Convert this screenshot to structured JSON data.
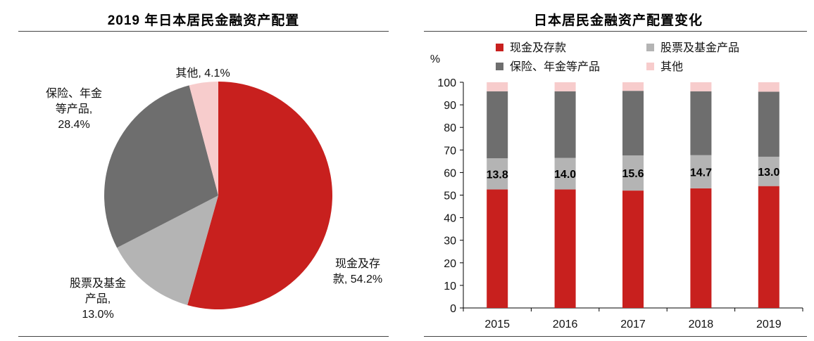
{
  "chart_data": [
    {
      "type": "pie",
      "title": "2019 年日本居民金融资产配置",
      "slices": [
        {
          "label_lines": [
            "现金及存",
            "款, 54.2%"
          ],
          "value": 54.2,
          "color": "#c8201e"
        },
        {
          "label_lines": [
            "股票及基金",
            "产品,",
            "13.0%"
          ],
          "value": 13.0,
          "color": "#b4b4b4"
        },
        {
          "label_lines": [
            "保险、年金",
            "等产品,",
            "28.4%"
          ],
          "value": 28.4,
          "color": "#6e6e6e"
        },
        {
          "label_lines": [
            "其他, 4.1%"
          ],
          "value": 4.1,
          "color": "#f7cccc"
        }
      ]
    },
    {
      "type": "bar",
      "stacked": true,
      "title": "日本居民金融资产配置变化",
      "ylabel": "%",
      "ylim": [
        0,
        100
      ],
      "yticks": [
        0,
        10,
        20,
        30,
        40,
        50,
        60,
        70,
        80,
        90,
        100
      ],
      "categories": [
        "2015",
        "2016",
        "2017",
        "2018",
        "2019"
      ],
      "legend_position": "top",
      "series": [
        {
          "name": "现金及存款",
          "color": "#c8201e",
          "values": [
            52.5,
            52.5,
            52.0,
            53.0,
            54.0
          ]
        },
        {
          "name": "股票及基金产品",
          "color": "#b4b4b4",
          "values": [
            13.8,
            14.0,
            15.6,
            14.7,
            13.0
          ]
        },
        {
          "name": "保险、年金等产品",
          "color": "#6e6e6e",
          "values": [
            29.7,
            29.5,
            28.6,
            28.3,
            28.8
          ]
        },
        {
          "name": "其他",
          "color": "#f7cccc",
          "values": [
            4.0,
            4.0,
            3.8,
            4.0,
            4.2
          ]
        }
      ],
      "data_labels": {
        "series_index": 1,
        "values": [
          "13.8",
          "14.0",
          "15.6",
          "14.7",
          "13.0"
        ]
      }
    }
  ]
}
